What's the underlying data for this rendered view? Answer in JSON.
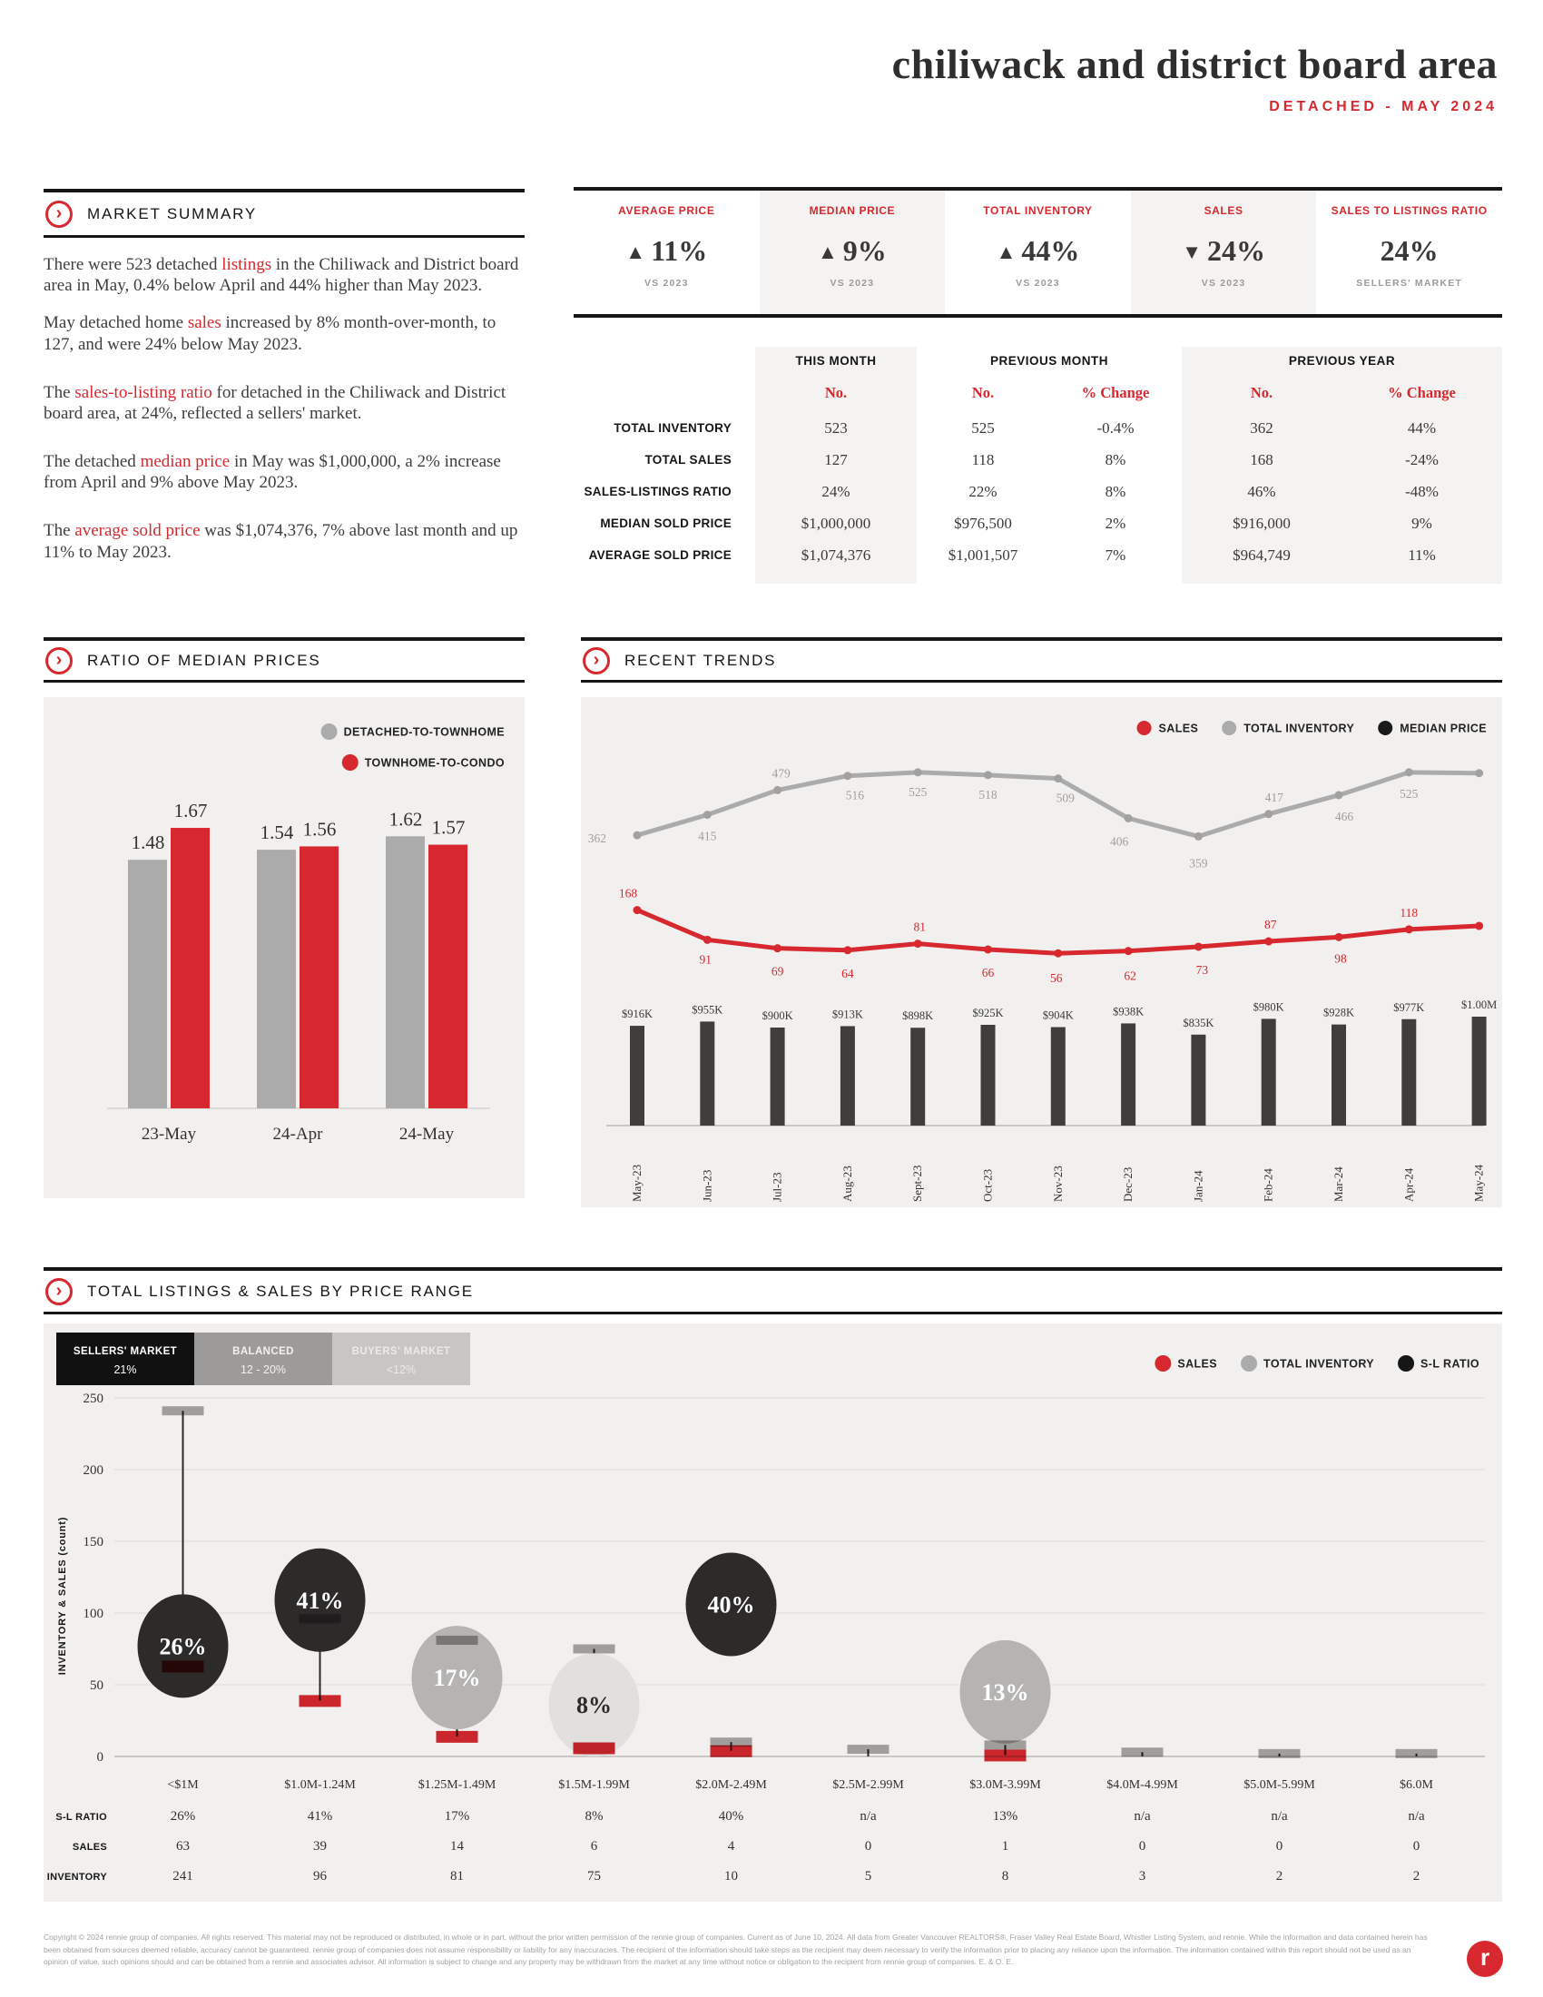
{
  "colors": {
    "accent_red": "#d7282f",
    "dark": "#2e2d2c",
    "line_gray": "#ababab",
    "bar_black": "#3f3e3d",
    "panel_gray": "#f1f0ee",
    "shade_gray": "#f4f3f1"
  },
  "header": {
    "title": "chiliwack and district board area",
    "subtitle": "DETACHED - MAY 2024"
  },
  "market_summary": {
    "heading": "MARKET SUMMARY",
    "paragraphs": [
      {
        "segments": [
          {
            "t": "There were 523 detached "
          },
          {
            "t": "listings",
            "red": true
          },
          {
            "t": " in the Chiliwack and District board area in May, 0.4% below April and 44% higher than May 2023."
          }
        ]
      },
      {
        "segments": [
          {
            "t": "May detached home "
          },
          {
            "t": "sales",
            "red": true
          },
          {
            "t": " increased by 8% month-over-month, to 127, and were 24% below May 2023."
          }
        ]
      },
      {
        "segments": [
          {
            "t": "The "
          },
          {
            "t": "sales-to-listing ratio",
            "red": true
          },
          {
            "t": " for detached in the Chiliwack and District board area, at 24%, reflected a sellers' market."
          }
        ]
      },
      {
        "segments": [
          {
            "t": "The detached "
          },
          {
            "t": "median price",
            "red": true
          },
          {
            "t": " in May was $1,000,000, a 2% increase from April and 9% above May 2023."
          }
        ]
      },
      {
        "segments": [
          {
            "t": "The "
          },
          {
            "t": "average sold price",
            "red": true
          },
          {
            "t": " was $1,074,376, 7% above last month and up 11% to May 2023."
          }
        ]
      }
    ]
  },
  "kpis": [
    {
      "label": "AVERAGE PRICE",
      "direction": "up",
      "value": "11%",
      "sub": "VS 2023",
      "shaded": false
    },
    {
      "label": "MEDIAN PRICE",
      "direction": "up",
      "value": "9%",
      "sub": "VS 2023",
      "shaded": true
    },
    {
      "label": "TOTAL INVENTORY",
      "direction": "up",
      "value": "44%",
      "sub": "VS 2023",
      "shaded": false
    },
    {
      "label": "SALES",
      "direction": "down",
      "value": "24%",
      "sub": "VS 2023",
      "shaded": true
    },
    {
      "label": "SALES TO LISTINGS RATIO",
      "direction": "none",
      "value": "24%",
      "sub": "SELLERS' MARKET",
      "shaded": false
    }
  ],
  "comparison_table": {
    "groups": [
      "THIS MONTH",
      "PREVIOUS MONTH",
      "PREVIOUS YEAR"
    ],
    "subheaders": [
      "No.",
      "No.",
      "% Change",
      "No.",
      "% Change"
    ],
    "rows": [
      {
        "label": "TOTAL INVENTORY",
        "values": [
          "523",
          "525",
          "-0.4%",
          "362",
          "44%"
        ]
      },
      {
        "label": "TOTAL SALES",
        "values": [
          "127",
          "118",
          "8%",
          "168",
          "-24%"
        ]
      },
      {
        "label": "SALES-LISTINGS RATIO",
        "values": [
          "24%",
          "22%",
          "8%",
          "46%",
          "-48%"
        ]
      },
      {
        "label": "MEDIAN SOLD PRICE",
        "values": [
          "$1,000,000",
          "$976,500",
          "2%",
          "$916,000",
          "9%"
        ]
      },
      {
        "label": "AVERAGE SOLD PRICE",
        "values": [
          "$1,074,376",
          "$1,001,507",
          "7%",
          "$964,749",
          "11%"
        ]
      }
    ]
  },
  "chart_data": [
    {
      "id": "ratio_of_median_prices",
      "type": "bar",
      "title": "RATIO OF MEDIAN PRICES",
      "categories": [
        "23-May",
        "24-Apr",
        "24-May"
      ],
      "series": [
        {
          "name": "DETACHED-TO-TOWNHOME",
          "color": "#ababab",
          "values": [
            1.48,
            1.54,
            1.62
          ]
        },
        {
          "name": "TOWNHOME-TO-CONDO",
          "color": "#d7282f",
          "values": [
            1.67,
            1.56,
            1.57
          ]
        }
      ],
      "ylim": [
        0,
        2
      ],
      "grid": false,
      "legend_position": "top-right"
    },
    {
      "id": "recent_trends",
      "type": "line+bar",
      "title": "RECENT TRENDS",
      "categories": [
        "May-23",
        "Jun-23",
        "Jul-23",
        "Aug-23",
        "Sept-23",
        "Oct-23",
        "Nov-23",
        "Dec-23",
        "Jan-24",
        "Feb-24",
        "Mar-24",
        "Apr-24",
        "May-24"
      ],
      "series": [
        {
          "name": "SALES",
          "chart": "line",
          "color": "#d7282f",
          "values": [
            168,
            91,
            69,
            64,
            81,
            66,
            56,
            62,
            73,
            87,
            98,
            118,
            127
          ]
        },
        {
          "name": "TOTAL INVENTORY",
          "chart": "line",
          "color": "#ababab",
          "values": [
            362,
            415,
            479,
            516,
            525,
            518,
            509,
            406,
            359,
            417,
            466,
            525,
            523
          ]
        },
        {
          "name": "MEDIAN PRICE",
          "chart": "bar",
          "color": "#3f3e3d",
          "values_thousands": [
            916,
            955,
            900,
            913,
            898,
            925,
            904,
            938,
            835,
            980,
            928,
            977,
            1000
          ],
          "labels": [
            "$916K",
            "$955K",
            "$900K",
            "$913K",
            "$898K",
            "$925K",
            "$904K",
            "$938K",
            "$835K",
            "$980K",
            "$928K",
            "$977K",
            "$1.00M"
          ]
        }
      ],
      "legend_position": "top-right",
      "grid": false
    },
    {
      "id": "total_listings_sales_by_price_range",
      "type": "lollipop",
      "title": "TOTAL LISTINGS & SALES BY PRICE RANGE",
      "ylabel": "INVENTORY & SALES (count)",
      "ylim": [
        0,
        250
      ],
      "yticks": [
        0,
        50,
        100,
        150,
        200,
        250
      ],
      "grid": true,
      "categories": [
        "<$1M",
        "$1.0M-1.24M",
        "$1.25M-1.49M",
        "$1.5M-1.99M",
        "$2.0M-2.49M",
        "$2.5M-2.99M",
        "$3.0M-3.99M",
        "$4.0M-4.99M",
        "$5.0M-5.99M",
        "$6.0M"
      ],
      "sl_ratio": [
        "26%",
        "41%",
        "17%",
        "8%",
        "40%",
        "n/a",
        "13%",
        "n/a",
        "n/a",
        "n/a"
      ],
      "sales": [
        63,
        39,
        14,
        6,
        4,
        0,
        1,
        0,
        0,
        0
      ],
      "inventory": [
        241,
        96,
        81,
        75,
        10,
        5,
        8,
        3,
        2,
        2
      ],
      "bubbles": [
        {
          "index": 0,
          "label": "26%",
          "height": 77,
          "tone": "dark"
        },
        {
          "index": 1,
          "label": "41%",
          "height": 109,
          "tone": "dark"
        },
        {
          "index": 2,
          "label": "17%",
          "height": 55,
          "tone": "mid"
        },
        {
          "index": 3,
          "label": "8%",
          "height": 36,
          "tone": "light"
        },
        {
          "index": 4,
          "label": "40%",
          "height": 106,
          "tone": "dark"
        },
        {
          "index": 6,
          "label": "13%",
          "height": 45,
          "tone": "mid"
        }
      ],
      "market_legend": [
        {
          "title": "SELLERS' MARKET",
          "sub": "21%",
          "bg": "#111111",
          "fg": "#ffffff"
        },
        {
          "title": "BALANCED",
          "sub": "12 - 20%",
          "bg": "#9c9b99",
          "fg": "#f2f1ef"
        },
        {
          "title": "BUYERS' MARKET",
          "sub": "<12%",
          "bg": "#c7c6c4",
          "fg": "#ebeae8"
        }
      ],
      "series_legend": [
        {
          "label": "SALES",
          "color": "#d7282f"
        },
        {
          "label": "TOTAL INVENTORY",
          "color": "#ababab"
        },
        {
          "label": "S-L RATIO",
          "color": "#161616"
        }
      ],
      "table_row_labels": [
        "S-L RATIO",
        "SALES",
        "INVENTORY"
      ]
    }
  ],
  "section_headings": {
    "ratio": "RATIO OF MEDIAN PRICES",
    "trends": "RECENT TRENDS",
    "price_range": "TOTAL LISTINGS & SALES BY PRICE RANGE"
  },
  "footer": {
    "disclaimer": "Copyright © 2024 rennie group of companies. All rights reserved. This material may not be reproduced or distributed, in whole or in part, without the prior written permission of the rennie group of companies. Current as of June 10, 2024. All data from Greater Vancouver REALTORS®, Fraser Valley Real Estate Board, Whistler Listing System, and rennie. While the information and data contained herein has been obtained from sources deemed reliable, accuracy cannot be guaranteed. rennie group of companies does not assume responsibility or liability for any inaccuracies. The recipient of the information should take steps as the recipient may deem necessary to verify the information prior to placing any reliance upon the information. The information contained within this report should not be used as an opinion of value, such opinions should and can be obtained from a rennie and associates advisor. All information is subject to change and any property may be withdrawn from the market at any time without notice or obligation to the recipient from rennie group of companies. E. & O. E.",
    "logo_letter": "r"
  }
}
